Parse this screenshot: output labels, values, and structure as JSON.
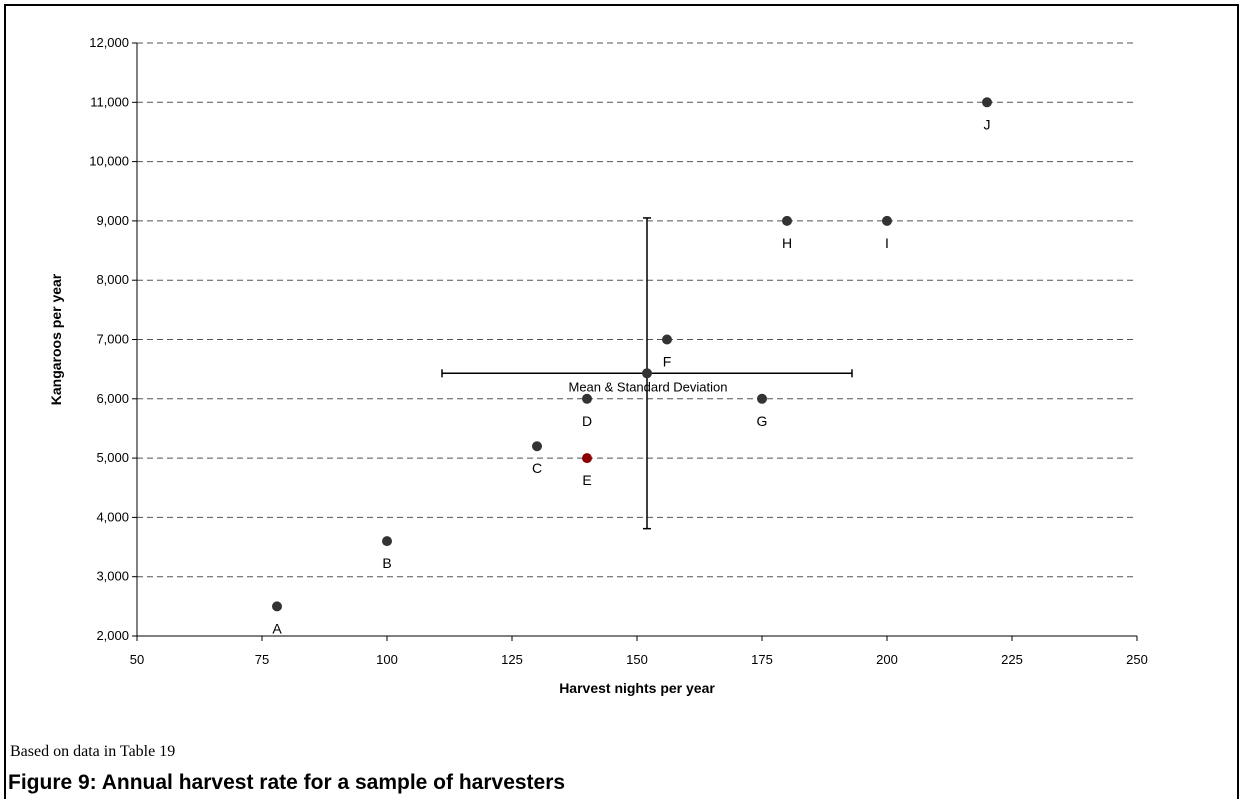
{
  "chart_data": {
    "type": "scatter",
    "xlabel": "Harvest nights per year",
    "ylabel": "Kangaroos per year",
    "xlim": [
      50,
      250
    ],
    "ylim": [
      2000,
      12000
    ],
    "xticks": [
      50,
      75,
      100,
      125,
      150,
      175,
      200,
      225,
      250
    ],
    "yticks": [
      2000,
      3000,
      4000,
      5000,
      6000,
      7000,
      8000,
      9000,
      10000,
      11000,
      12000
    ],
    "xtick_labels": [
      "50",
      "75",
      "100",
      "125",
      "150",
      "175",
      "200",
      "225",
      "250"
    ],
    "ytick_labels": [
      "2,000",
      "3,000",
      "4,000",
      "5,000",
      "6,000",
      "7,000",
      "8,000",
      "9,000",
      "10,000",
      "11,000",
      "12,000"
    ],
    "grid": "horizontal dashed",
    "points": [
      {
        "label": "A",
        "x": 78,
        "y": 2500,
        "color": "#333333"
      },
      {
        "label": "B",
        "x": 100,
        "y": 3600,
        "color": "#333333"
      },
      {
        "label": "C",
        "x": 130,
        "y": 5200,
        "color": "#333333"
      },
      {
        "label": "D",
        "x": 140,
        "y": 6000,
        "color": "#333333"
      },
      {
        "label": "E",
        "x": 140,
        "y": 5000,
        "color": "#8b0000"
      },
      {
        "label": "F",
        "x": 156,
        "y": 7000,
        "color": "#333333"
      },
      {
        "label": "G",
        "x": 175,
        "y": 6000,
        "color": "#333333"
      },
      {
        "label": "H",
        "x": 180,
        "y": 9000,
        "color": "#333333"
      },
      {
        "label": "I",
        "x": 200,
        "y": 9000,
        "color": "#333333"
      },
      {
        "label": "J",
        "x": 220,
        "y": 11000,
        "color": "#333333"
      }
    ],
    "mean": {
      "label": "Mean & Standard Deviation",
      "x": 152,
      "y": 6430,
      "x_sd": 41,
      "y_sd": 2620
    }
  },
  "note": "Based on data in Table 19",
  "caption": "Figure 9: Annual harvest rate for a sample of harvesters"
}
